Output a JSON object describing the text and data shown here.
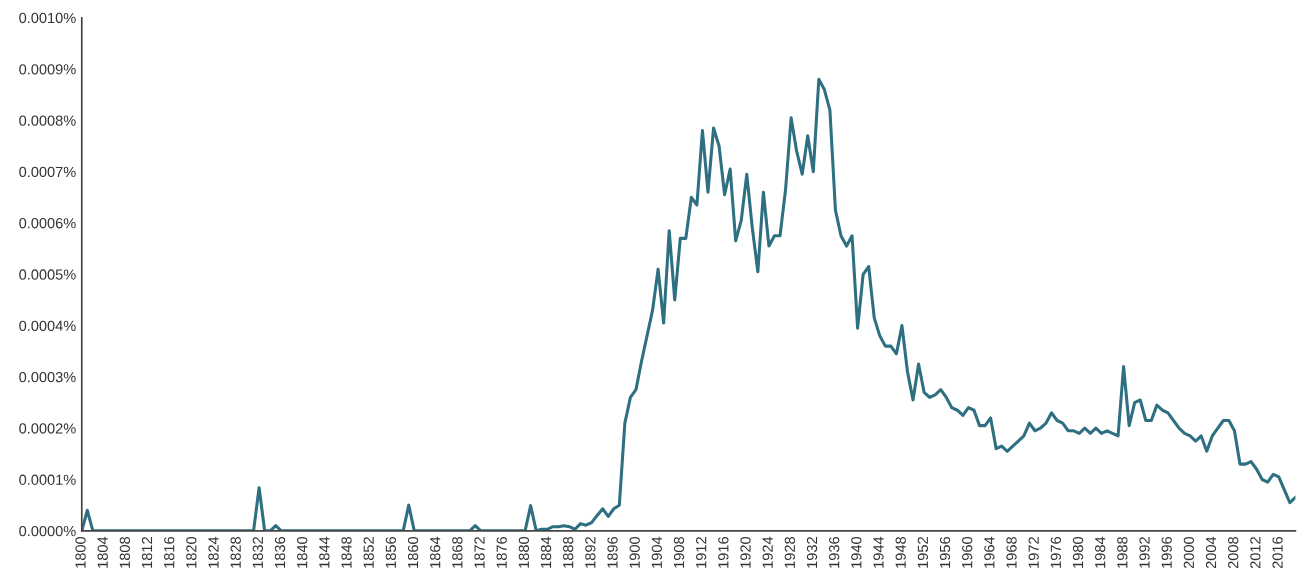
{
  "chart_data": {
    "type": "line",
    "x": [
      1800,
      1801,
      1802,
      1803,
      1804,
      1805,
      1806,
      1807,
      1808,
      1809,
      1810,
      1811,
      1812,
      1813,
      1814,
      1815,
      1816,
      1817,
      1818,
      1819,
      1820,
      1821,
      1822,
      1823,
      1824,
      1825,
      1826,
      1827,
      1828,
      1829,
      1830,
      1831,
      1832,
      1833,
      1834,
      1835,
      1836,
      1837,
      1838,
      1839,
      1840,
      1841,
      1842,
      1843,
      1844,
      1845,
      1846,
      1847,
      1848,
      1849,
      1850,
      1851,
      1852,
      1853,
      1854,
      1855,
      1856,
      1857,
      1858,
      1859,
      1860,
      1861,
      1862,
      1863,
      1864,
      1865,
      1866,
      1867,
      1868,
      1869,
      1870,
      1871,
      1872,
      1873,
      1874,
      1875,
      1876,
      1877,
      1878,
      1879,
      1880,
      1881,
      1882,
      1883,
      1884,
      1885,
      1886,
      1887,
      1888,
      1889,
      1890,
      1891,
      1892,
      1893,
      1894,
      1895,
      1896,
      1897,
      1898,
      1899,
      1900,
      1901,
      1902,
      1903,
      1904,
      1905,
      1906,
      1907,
      1908,
      1909,
      1910,
      1911,
      1912,
      1913,
      1914,
      1915,
      1916,
      1917,
      1918,
      1919,
      1920,
      1921,
      1922,
      1923,
      1924,
      1925,
      1926,
      1927,
      1928,
      1929,
      1930,
      1931,
      1932,
      1933,
      1934,
      1935,
      1936,
      1937,
      1938,
      1939,
      1940,
      1941,
      1942,
      1943,
      1944,
      1945,
      1946,
      1947,
      1948,
      1949,
      1950,
      1951,
      1952,
      1953,
      1954,
      1955,
      1956,
      1957,
      1958,
      1959,
      1960,
      1961,
      1962,
      1963,
      1964,
      1965,
      1966,
      1967,
      1968,
      1969,
      1970,
      1971,
      1972,
      1973,
      1974,
      1975,
      1976,
      1977,
      1978,
      1979,
      1980,
      1981,
      1982,
      1983,
      1984,
      1985,
      1986,
      1987,
      1988,
      1989,
      1990,
      1991,
      1992,
      1993,
      1994,
      1995,
      1996,
      1997,
      1998,
      1999,
      2000,
      2001,
      2002,
      2003,
      2004,
      2005,
      2006,
      2007,
      2008,
      2009,
      2010,
      2011,
      2012,
      2013,
      2014,
      2015,
      2016,
      2017,
      2018,
      2019
    ],
    "series": [
      {
        "color": "#2e6f82",
        "values": [
          0,
          4e-05,
          0,
          0,
          0,
          0,
          0,
          0,
          0,
          0,
          0,
          0,
          0,
          0,
          0,
          0,
          0,
          0,
          0,
          0,
          0,
          0,
          0,
          0,
          0,
          0,
          0,
          0,
          0,
          0,
          0,
          0,
          8.4e-05,
          0,
          0,
          1e-05,
          0,
          0,
          0,
          0,
          0,
          0,
          0,
          0,
          0,
          0,
          0,
          0,
          0,
          0,
          0,
          0,
          0,
          0,
          0,
          0,
          0,
          0,
          0,
          5e-05,
          0,
          0,
          0,
          0,
          0,
          0,
          0,
          0,
          0,
          0,
          0,
          1e-05,
          0,
          0,
          0,
          0,
          0,
          0,
          0,
          0,
          0,
          4.9e-05,
          0,
          3e-06,
          3e-06,
          8e-06,
          8e-06,
          1e-05,
          8e-06,
          3e-06,
          1.4e-05,
          1.1e-05,
          1.6e-05,
          3e-05,
          4.3e-05,
          2.8e-05,
          4.3e-05,
          5e-05,
          0.00021,
          0.00026,
          0.000275,
          0.00033,
          0.00038,
          0.00043,
          0.00051,
          0.000405,
          0.000585,
          0.00045,
          0.00057,
          0.00057,
          0.00065,
          0.000635,
          0.00078,
          0.00066,
          0.000785,
          0.00075,
          0.000655,
          0.000705,
          0.000565,
          0.000605,
          0.000695,
          0.00059,
          0.000505,
          0.00066,
          0.000555,
          0.000575,
          0.000575,
          0.000665,
          0.000805,
          0.00074,
          0.000695,
          0.00077,
          0.0007,
          0.00088,
          0.00086,
          0.00082,
          0.000625,
          0.000575,
          0.000555,
          0.000575,
          0.000395,
          0.0005,
          0.000515,
          0.000415,
          0.00038,
          0.00036,
          0.00036,
          0.000345,
          0.0004,
          0.00031,
          0.000255,
          0.000325,
          0.00027,
          0.00026,
          0.000265,
          0.000275,
          0.00026,
          0.00024,
          0.000235,
          0.000225,
          0.00024,
          0.000235,
          0.000205,
          0.000205,
          0.00022,
          0.00016,
          0.000165,
          0.000155,
          0.000165,
          0.000175,
          0.000185,
          0.00021,
          0.000195,
          0.0002,
          0.00021,
          0.00023,
          0.000215,
          0.00021,
          0.000195,
          0.000195,
          0.00019,
          0.0002,
          0.00019,
          0.0002,
          0.00019,
          0.000195,
          0.00019,
          0.000185,
          0.00032,
          0.000205,
          0.00025,
          0.000255,
          0.000215,
          0.000215,
          0.000245,
          0.000235,
          0.00023,
          0.000215,
          0.0002,
          0.00019,
          0.000185,
          0.000175,
          0.000185,
          0.000155,
          0.000185,
          0.0002,
          0.000215,
          0.000215,
          0.000195,
          0.00013,
          0.00013,
          0.000135,
          0.00012,
          0.0001,
          9.5e-05,
          0.00011,
          0.000105,
          8e-05,
          5.5e-05,
          6.5e-05
        ]
      }
    ],
    "xlim": [
      1800,
      2019
    ],
    "xticks": [
      1800,
      1804,
      1808,
      1812,
      1816,
      1820,
      1824,
      1828,
      1832,
      1836,
      1840,
      1844,
      1848,
      1852,
      1856,
      1860,
      1864,
      1868,
      1872,
      1876,
      1880,
      1884,
      1888,
      1892,
      1896,
      1900,
      1904,
      1908,
      1912,
      1916,
      1920,
      1924,
      1928,
      1932,
      1936,
      1940,
      1944,
      1948,
      1952,
      1956,
      1960,
      1964,
      1968,
      1972,
      1976,
      1980,
      1984,
      1988,
      1992,
      1996,
      2000,
      2004,
      2008,
      2012,
      2016
    ],
    "ylim": [
      0,
      0.001
    ],
    "yticks": [
      {
        "value": 0,
        "label": "0.0000%"
      },
      {
        "value": 0.0001,
        "label": "0.0001%"
      },
      {
        "value": 0.0002,
        "label": "0.0002%"
      },
      {
        "value": 0.0003,
        "label": "0.0003%"
      },
      {
        "value": 0.0004,
        "label": "0.0004%"
      },
      {
        "value": 0.0005,
        "label": "0.0005%"
      },
      {
        "value": 0.0006,
        "label": "0.0006%"
      },
      {
        "value": 0.0007,
        "label": "0.0007%"
      },
      {
        "value": 0.0008,
        "label": "0.0008%"
      },
      {
        "value": 0.0009,
        "label": "0.0009%"
      },
      {
        "value": 0.001,
        "label": "0.0010%"
      }
    ],
    "grid": false,
    "marker": "none",
    "line_style": "solid"
  }
}
